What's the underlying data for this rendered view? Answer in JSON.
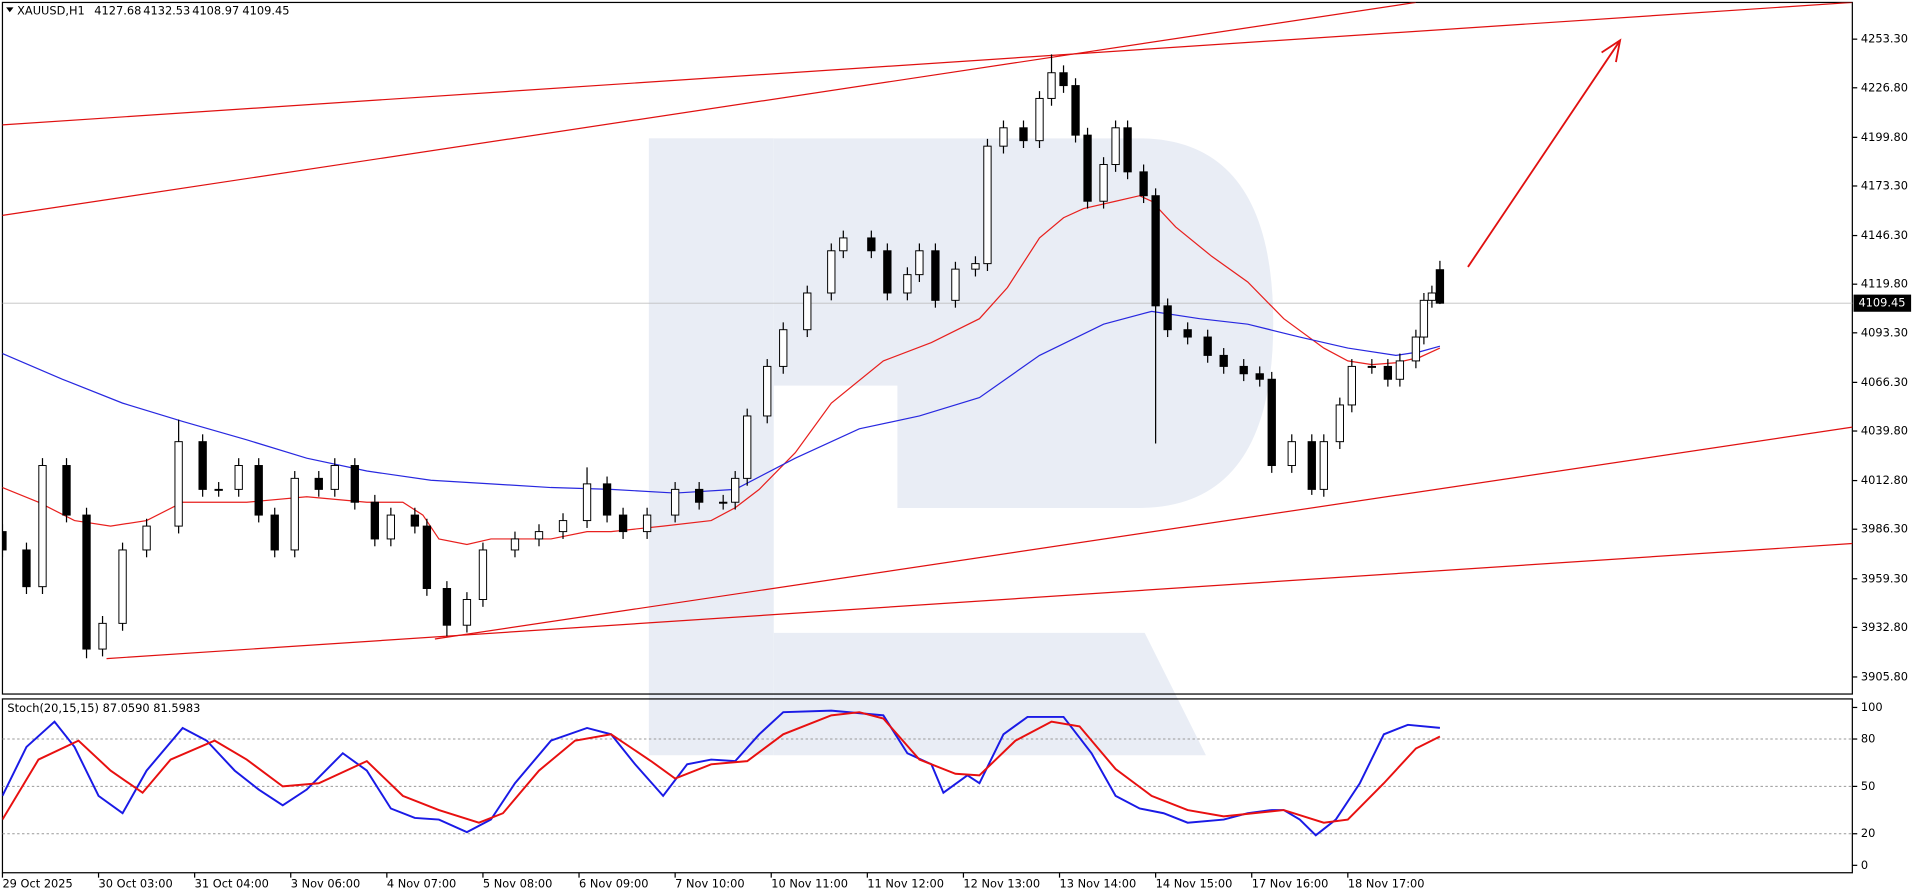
{
  "chart_data": [
    {
      "type": "candlestick",
      "title": "XAUUSD,H1",
      "x": [
        0,
        6,
        10,
        16,
        21,
        25,
        30,
        36,
        44,
        50,
        54,
        59,
        64,
        68,
        73,
        79,
        83,
        88,
        93,
        97,
        103,
        106,
        111,
        116,
        120,
        128,
        134,
        140,
        146,
        151,
        155,
        161,
        168,
        174,
        180,
        183,
        186,
        191,
        195,
        201,
        207,
        210,
        217,
        221,
        226,
        229,
        233,
        238,
        243,
        246,
        250,
        255,
        259,
        262,
        265,
        268,
        271,
        275,
        278,
        281,
        285,
        288,
        291,
        296,
        301,
        305,
        310,
        314,
        317,
        322,
        327,
        330,
        334,
        337,
        342,
        346,
        349,
        353,
        355,
        357,
        359
      ],
      "open": [
        3985,
        3975,
        3955,
        4021,
        3994,
        3921,
        3935,
        3975,
        3988,
        4034,
        4008,
        4008,
        4021,
        3994,
        3975,
        4014,
        4008,
        4021,
        4001,
        3981,
        3994,
        3988,
        3954,
        3934,
        3948,
        3975,
        3981,
        3985,
        3991,
        4011,
        3994,
        3985,
        3994,
        4008,
        4001,
        4001,
        4014,
        4048,
        4075,
        4095,
        4115,
        4138,
        4145,
        4138,
        4115,
        4125,
        4138,
        4111,
        4128,
        4131,
        4195,
        4205,
        4198,
        4221,
        4235,
        4228,
        4201,
        4165,
        4185,
        4205,
        4181,
        4168,
        4108,
        4095,
        4091,
        4081,
        4075,
        4071,
        4068,
        4021,
        4034,
        4008,
        4034,
        4054,
        4075,
        4075,
        4068,
        4078,
        4091,
        4111,
        4127.68
      ],
      "high": [
        3989,
        3979,
        4025,
        4025,
        3998,
        3939,
        3979,
        3992,
        4046,
        4038,
        4012,
        4025,
        4025,
        3998,
        4018,
        4018,
        4025,
        4025,
        4005,
        3998,
        3998,
        3992,
        3958,
        3952,
        3979,
        3985,
        3989,
        3995,
        4020,
        4015,
        3998,
        3998,
        4012,
        4012,
        4005,
        4018,
        4052,
        4079,
        4099,
        4119,
        4142,
        4149,
        4149,
        4142,
        4129,
        4142,
        4142,
        4132,
        4135,
        4199,
        4209,
        4209,
        4225,
        4245,
        4239,
        4232,
        4205,
        4189,
        4209,
        4209,
        4185,
        4172,
        4112,
        4099,
        4095,
        4085,
        4079,
        4075,
        4072,
        4038,
        4038,
        4038,
        4058,
        4079,
        4079,
        4079,
        4082,
        4095,
        4115,
        4119,
        4132.53
      ],
      "low": [
        3971,
        3951,
        3951,
        3990,
        3916,
        3917,
        3931,
        3971,
        3984,
        4004,
        4004,
        4004,
        3990,
        3971,
        3971,
        4004,
        4004,
        3997,
        3977,
        3977,
        3984,
        3950,
        3928,
        3930,
        3944,
        3971,
        3977,
        3981,
        3987,
        3990,
        3981,
        3981,
        3990,
        3997,
        3997,
        3997,
        4010,
        4044,
        4071,
        4091,
        4111,
        4134,
        4134,
        4111,
        4111,
        4121,
        4107,
        4107,
        4124,
        4127,
        4191,
        4194,
        4194,
        4217,
        4224,
        4197,
        4161,
        4161,
        4181,
        4177,
        4164,
        4033,
        4091,
        4087,
        4077,
        4071,
        4067,
        4064,
        4017,
        4017,
        4005,
        4004,
        4030,
        4050,
        4071,
        4064,
        4064,
        4074,
        4087,
        4107,
        4108.97
      ],
      "close": [
        3975,
        3955,
        4021,
        3994,
        3921,
        3935,
        3975,
        3988,
        4034,
        4008,
        4008,
        4021,
        3994,
        3975,
        4014,
        4008,
        4021,
        4001,
        3981,
        3994,
        3988,
        3954,
        3934,
        3948,
        3975,
        3981,
        3985,
        3991,
        4011,
        3994,
        3985,
        3994,
        4008,
        4001,
        4001,
        4014,
        4048,
        4075,
        4095,
        4115,
        4138,
        4145,
        4138,
        4115,
        4125,
        4138,
        4111,
        4128,
        4131,
        4195,
        4205,
        4198,
        4221,
        4235,
        4228,
        4201,
        4165,
        4185,
        4205,
        4181,
        4168,
        4108,
        4095,
        4091,
        4081,
        4075,
        4071,
        4068,
        4021,
        4034,
        4008,
        4034,
        4054,
        4075,
        4075,
        4068,
        4078,
        4091,
        4111,
        4115,
        4109.45
      ],
      "up_color": "#ffffff",
      "down_color": "#000000",
      "wick_color": "#000000",
      "series": [
        {
          "color": "#e8201e",
          "x": [
            0,
            9,
            18,
            27,
            36,
            45,
            61,
            76,
            91,
            100,
            105,
            109,
            116,
            122,
            137,
            146,
            152,
            165,
            177,
            183,
            189,
            198,
            207,
            220,
            232,
            244,
            251,
            259,
            265,
            270,
            278,
            284,
            287,
            293,
            302,
            311,
            320,
            330,
            336,
            342,
            348,
            354,
            359
          ],
          "values": [
            4009,
            4001,
            3991,
            3988,
            3991,
            4001,
            4001,
            4004,
            4001,
            4001,
            3994,
            3981,
            3978,
            3981,
            3981,
            3985,
            3985,
            3988,
            3991,
            3998,
            4008,
            4028,
            4055,
            4078,
            4088,
            4101,
            4118,
            4145,
            4156,
            4161,
            4165,
            4168,
            4165,
            4151,
            4135,
            4121,
            4101,
            4085,
            4078,
            4076,
            4077,
            4080,
            4085
          ]
        },
        {
          "color": "#2828e0",
          "x": [
            0,
            15,
            30,
            45,
            61,
            76,
            91,
            107,
            122,
            137,
            152,
            168,
            183,
            198,
            214,
            229,
            244,
            259,
            275,
            287,
            299,
            311,
            324,
            336,
            348,
            354,
            359
          ],
          "values": [
            4082,
            4068,
            4055,
            4045,
            4035,
            4025,
            4018,
            4013,
            4011,
            4009,
            4008,
            4006,
            4008,
            4025,
            4041,
            4048,
            4058,
            4081,
            4098,
            4105,
            4101,
            4098,
            4091,
            4085,
            4081,
            4083,
            4086
          ]
        }
      ],
      "trendlines": [
        {
          "x": [
            0,
            462
          ],
          "values": [
            4206.6,
            4273.3
          ]
        },
        {
          "x": [
            0,
            353
          ],
          "values": [
            4157.3,
            4273.3
          ]
        },
        {
          "x": [
            26,
            462
          ],
          "values": [
            3915.8,
            3978.5
          ]
        },
        {
          "x": [
            108,
            462
          ],
          "values": [
            3926.5,
            4041.9
          ]
        }
      ],
      "arrow": {
        "x": [
          366,
          404
        ],
        "values": [
          4129.2,
          4252.6
        ]
      },
      "trend_color": "#e01010",
      "price_line_color": "#c0c0c0",
      "xlim": [
        0,
        462
      ],
      "ylim": [
        3896.5,
        4273.3
      ],
      "yticks": [
        {
          "value": 4253.3,
          "label": "4253.30"
        },
        {
          "value": 4226.8,
          "label": "4226.80"
        },
        {
          "value": 4199.8,
          "label": "4199.80"
        },
        {
          "value": 4173.3,
          "label": "4173.30"
        },
        {
          "value": 4146.3,
          "label": "4146.30"
        },
        {
          "value": 4119.8,
          "label": "4119.80"
        },
        {
          "value": 4093.3,
          "label": "4093.30"
        },
        {
          "value": 4066.3,
          "label": "4066.30"
        },
        {
          "value": 4039.8,
          "label": "4039.80"
        },
        {
          "value": 4012.8,
          "label": "4012.80"
        },
        {
          "value": 3986.3,
          "label": "3986.30"
        },
        {
          "value": 3959.3,
          "label": "3959.30"
        },
        {
          "value": 3932.8,
          "label": "3932.80"
        },
        {
          "value": 3905.8,
          "label": "3905.80"
        }
      ]
    },
    {
      "type": "line",
      "title": "Stoch(20,15,15) 87.0590 81.5983",
      "series": [
        {
          "color": "#1a1ae6",
          "x": [
            0,
            6,
            13,
            18,
            24,
            30,
            36,
            45,
            51,
            58,
            64,
            70,
            76,
            85,
            91,
            97,
            103,
            109,
            116,
            122,
            128,
            137,
            146,
            152,
            158,
            165,
            171,
            177,
            183,
            189,
            195,
            207,
            220,
            226,
            232,
            235,
            241,
            244,
            250,
            256,
            265,
            272,
            278,
            284,
            290,
            296,
            305,
            311,
            317,
            320,
            324,
            328,
            333,
            339,
            345,
            351,
            359
          ],
          "values": [
            44,
            75,
            91,
            75,
            44,
            33,
            60,
            87,
            79,
            60,
            48,
            38,
            48,
            71,
            60,
            36,
            30,
            29,
            21,
            29,
            52,
            79,
            87,
            83,
            64,
            44,
            64,
            67,
            66,
            83,
            97,
            98,
            95,
            71,
            64,
            46,
            57,
            52,
            83,
            94,
            94,
            71,
            44,
            36,
            33,
            27,
            29,
            33,
            35,
            35,
            29,
            19,
            29,
            52,
            83,
            89,
            87.059
          ]
        },
        {
          "color": "#e81010",
          "x": [
            0,
            9,
            19,
            27,
            35,
            42,
            53,
            61,
            70,
            79,
            91,
            100,
            109,
            119,
            125,
            134,
            143,
            152,
            162,
            168,
            177,
            186,
            195,
            207,
            214,
            220,
            229,
            238,
            244,
            253,
            262,
            269,
            278,
            287,
            296,
            305,
            320,
            330,
            336,
            345,
            353,
            359
          ],
          "values": [
            29,
            67,
            79,
            60,
            46,
            67,
            79,
            67,
            50,
            52,
            66,
            44,
            35,
            27,
            33,
            60,
            79,
            83,
            66,
            55,
            64,
            66,
            83,
            95,
            97,
            93,
            67,
            58,
            57,
            79,
            91,
            88,
            61,
            44,
            35,
            31,
            35,
            27,
            29,
            52,
            74,
            81.5983
          ]
        }
      ],
      "levels": [
        80,
        50,
        20
      ],
      "xlim": [
        0,
        462
      ],
      "ylim": [
        -4.7,
        105.4
      ],
      "yticks": [
        100,
        80,
        50,
        20,
        0
      ],
      "xticks": [
        {
          "value": 0,
          "label": "29 Oct 2025"
        },
        {
          "value": 24,
          "label": "30 Oct 03:00"
        },
        {
          "value": 48,
          "label": "31 Oct 04:00"
        },
        {
          "value": 72,
          "label": "3 Nov 06:00"
        },
        {
          "value": 96,
          "label": "4 Nov 07:00"
        },
        {
          "value": 120,
          "label": "5 Nov 08:00"
        },
        {
          "value": 144,
          "label": "6 Nov 09:00"
        },
        {
          "value": 168,
          "label": "7 Nov 10:00"
        },
        {
          "value": 192,
          "label": "10 Nov 11:00"
        },
        {
          "value": 216,
          "label": "11 Nov 12:00"
        },
        {
          "value": 240,
          "label": "12 Nov 13:00"
        },
        {
          "value": 264,
          "label": "13 Nov 14:00"
        },
        {
          "value": 288,
          "label": "14 Nov 15:00"
        },
        {
          "value": 312,
          "label": "17 Nov 16:00"
        },
        {
          "value": 336,
          "label": "18 Nov 17:00"
        }
      ]
    }
  ]
}
